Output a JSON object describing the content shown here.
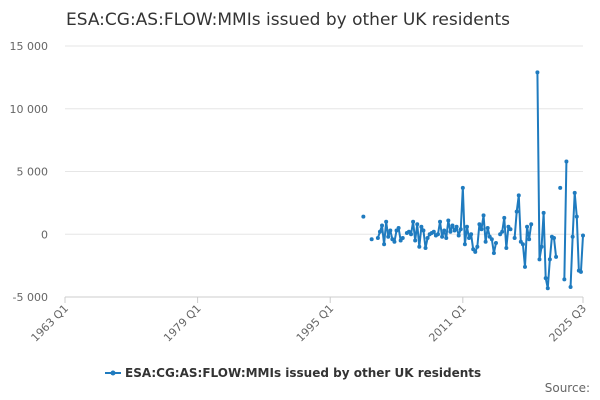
{
  "chart_data": {
    "type": "line",
    "title": "ESA:CG:AS:FLOW:MMIs issued by other UK residents",
    "source": "Source:",
    "x": [
      "1999 Q1",
      "1999 Q2",
      "1999 Q3",
      "1999 Q4",
      "2000 Q1",
      "2000 Q2",
      "2000 Q3",
      "2000 Q4",
      "2001 Q1",
      "2001 Q2",
      "2001 Q3",
      "2001 Q4",
      "2002 Q1",
      "2002 Q2",
      "2002 Q3",
      "2002 Q4",
      "2003 Q1",
      "2003 Q2",
      "2003 Q3",
      "2003 Q4",
      "2004 Q1",
      "2004 Q2",
      "2004 Q3",
      "2004 Q4",
      "2005 Q1",
      "2005 Q2",
      "2005 Q3",
      "2005 Q4",
      "2006 Q1",
      "2006 Q2",
      "2006 Q3",
      "2006 Q4",
      "2007 Q1",
      "2007 Q2",
      "2007 Q3",
      "2007 Q4",
      "2008 Q1",
      "2008 Q2",
      "2008 Q3",
      "2008 Q4",
      "2009 Q1",
      "2009 Q2",
      "2009 Q3",
      "2009 Q4",
      "2010 Q1",
      "2010 Q2",
      "2010 Q3",
      "2010 Q4",
      "2011 Q1",
      "2011 Q2",
      "2011 Q3",
      "2011 Q4",
      "2012 Q1",
      "2012 Q2",
      "2012 Q3",
      "2012 Q4",
      "2013 Q1",
      "2013 Q2",
      "2013 Q3",
      "2013 Q4",
      "2014 Q1",
      "2014 Q2",
      "2014 Q3",
      "2014 Q4",
      "2015 Q1",
      "2015 Q2",
      "2015 Q3",
      "2015 Q4",
      "2016 Q1",
      "2016 Q2",
      "2016 Q3",
      "2016 Q4",
      "2017 Q1",
      "2017 Q2",
      "2017 Q3",
      "2017 Q4",
      "2018 Q1",
      "2018 Q2",
      "2018 Q3",
      "2018 Q4",
      "2019 Q1",
      "2019 Q2",
      "2019 Q3",
      "2019 Q4",
      "2020 Q1",
      "2020 Q2",
      "2020 Q3",
      "2020 Q4",
      "2021 Q1",
      "2021 Q2",
      "2021 Q3",
      "2021 Q4",
      "2022 Q1",
      "2022 Q2",
      "2022 Q3",
      "2022 Q4",
      "2023 Q1",
      "2023 Q2",
      "2023 Q3",
      "2023 Q4",
      "2024 Q1",
      "2024 Q2",
      "2024 Q3",
      "2024 Q4",
      "2025 Q1",
      "2025 Q2",
      "2025 Q3"
    ],
    "series": [
      {
        "name": "ESA:CG:AS:FLOW:MMIs issued by other UK residents",
        "color": "#1f7bbf",
        "values": [
          1400,
          null,
          null,
          null,
          -400,
          null,
          null,
          -300,
          200,
          700,
          -800,
          1000,
          -200,
          300,
          -400,
          -600,
          300,
          500,
          -500,
          -300,
          null,
          100,
          200,
          0,
          1000,
          -500,
          800,
          -1000,
          600,
          300,
          -1100,
          -300,
          0,
          100,
          200,
          -100,
          0,
          1000,
          -200,
          300,
          -300,
          1100,
          200,
          700,
          300,
          600,
          -100,
          400,
          3700,
          -800,
          600,
          -300,
          0,
          -1200,
          -1400,
          -1000,
          800,
          400,
          1500,
          -600,
          500,
          -200,
          -400,
          -1500,
          -700,
          null,
          0,
          200,
          1300,
          -1100,
          600,
          400,
          null,
          -300,
          1800,
          3100,
          -600,
          -800,
          -2600,
          600,
          -400,
          800,
          null,
          null,
          12900,
          -2000,
          -1000,
          1700,
          -3500,
          -4300,
          -2000,
          -200,
          -300,
          -1800,
          null,
          3700,
          null,
          -3600,
          5800,
          null,
          -4200,
          -200,
          3300,
          1400,
          -2900,
          -3000,
          -100
        ]
      }
    ],
    "xlim": [
      "1963 Q1",
      "2025 Q3"
    ],
    "xticks": [
      "1963 Q1",
      "1979 Q1",
      "1995 Q1",
      "2011 Q1",
      "2025 Q3"
    ],
    "ylim": [
      -5000,
      15000
    ],
    "yticks": [
      {
        "value": -5000,
        "label": "-5 000"
      },
      0,
      {
        "value": 5000,
        "label": "5 000"
      },
      {
        "value": 10000,
        "label": "10 000"
      },
      {
        "value": 15000,
        "label": "15 000"
      }
    ],
    "grid": true
  }
}
